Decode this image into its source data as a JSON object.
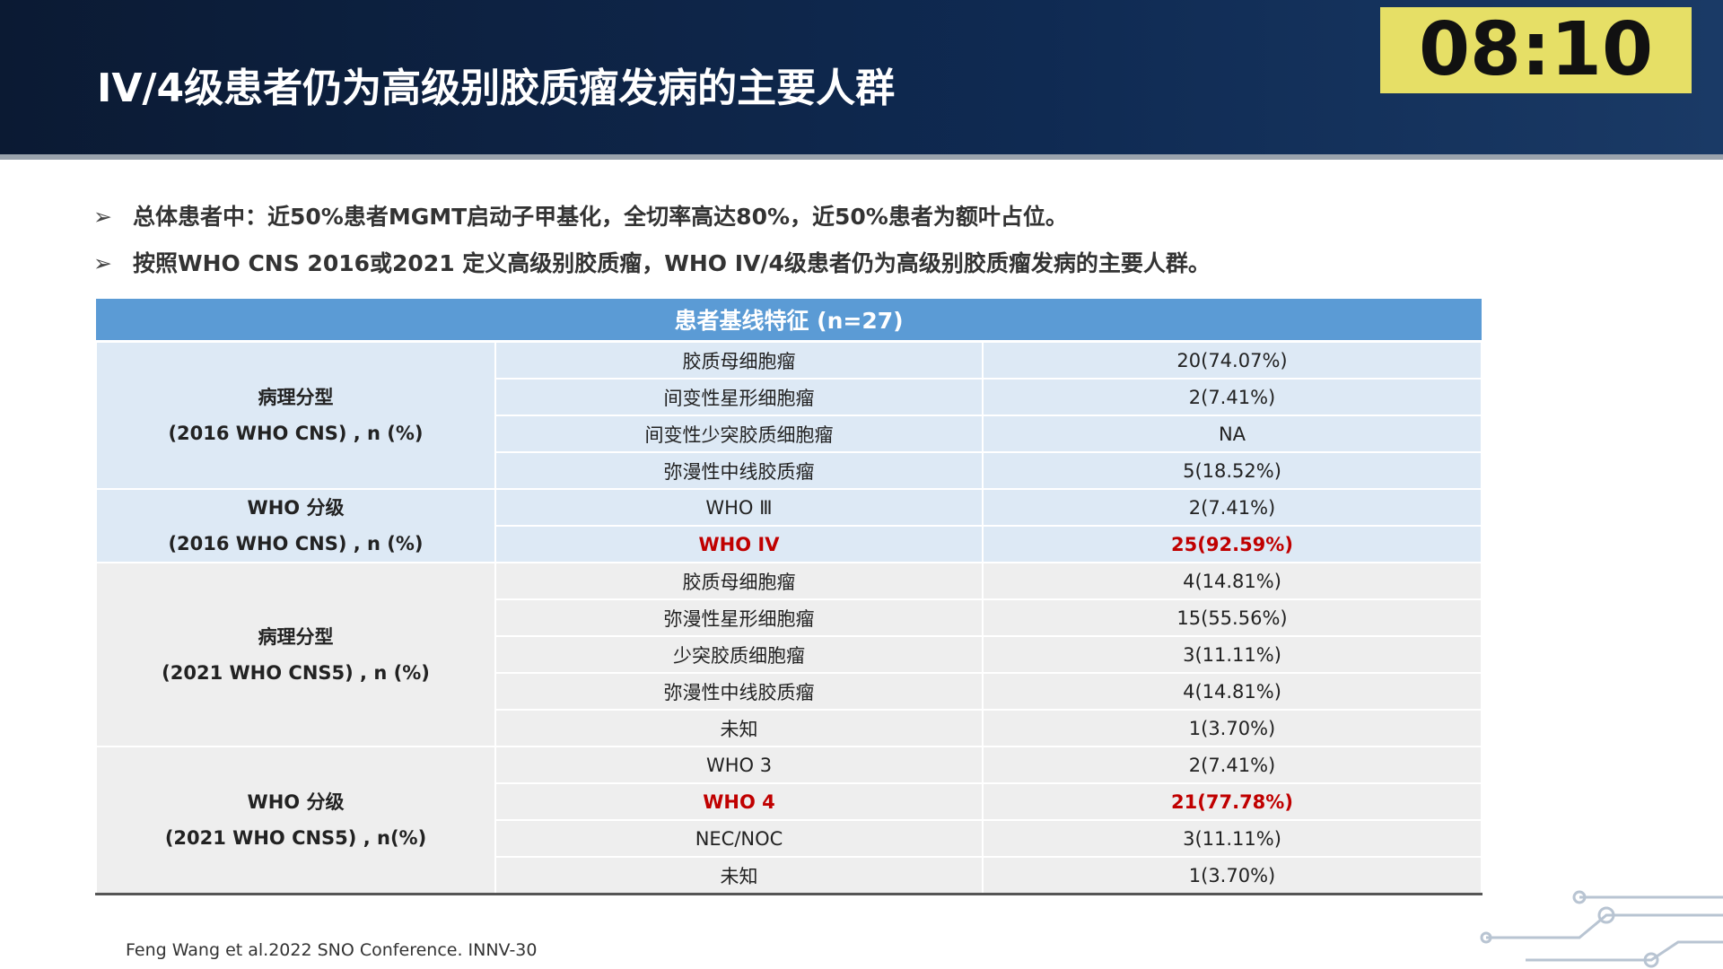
{
  "header": {
    "title": "IV/4级患者仍为高级别胶质瘤发病的主要人群",
    "timer": "08:10"
  },
  "bullets": [
    "总体患者中：近50%患者MGMT启动子甲基化，全切率高达80%，近50%患者为额叶占位。",
    "按照WHO CNS 2016或2021 定义高级别胶质瘤，WHO IV/4级患者仍为高级别胶质瘤发病的主要人群。"
  ],
  "table": {
    "title": "患者基线特征 (n=27)",
    "groups": [
      {
        "label": [
          "病理分型",
          "(2016 WHO CNS) , n (%)"
        ],
        "background": "#dde9f5",
        "rows": [
          [
            "胶质母细胞瘤",
            "20(74.07%)"
          ],
          [
            "间变性星形细胞瘤",
            "2(7.41%)"
          ],
          [
            "间变性少突胶质细胞瘤",
            "NA"
          ],
          [
            "弥漫性中线胶质瘤",
            "5(18.52%)"
          ]
        ]
      },
      {
        "label": [
          "WHO 分级",
          "(2016 WHO CNS) , n (%)"
        ],
        "background": "#dde9f5",
        "highlight_row": 1,
        "rows": [
          [
            "WHO Ⅲ",
            "2(7.41%)"
          ],
          [
            "WHO IV",
            "25(92.59%)"
          ]
        ]
      },
      {
        "label": [
          "病理分型",
          "(2021 WHO CNS5) , n (%)"
        ],
        "background": "#eeeeee",
        "rows": [
          [
            "胶质母细胞瘤",
            "4(14.81%)"
          ],
          [
            "弥漫性星形细胞瘤",
            "15(55.56%)"
          ],
          [
            "少突胶质细胞瘤",
            "3(11.11%)"
          ],
          [
            "弥漫性中线胶质瘤",
            "4(14.81%)"
          ],
          [
            "未知",
            "1(3.70%)"
          ]
        ]
      },
      {
        "label": [
          "WHO 分级",
          "(2021 WHO CNS5) , n(%)"
        ],
        "background": "#eeeeee",
        "highlight_row": 1,
        "rows": [
          [
            "WHO 3",
            "2(7.41%)"
          ],
          [
            "WHO 4",
            "21(77.78%)"
          ],
          [
            "NEC/NOC",
            "3(11.11%)"
          ],
          [
            "未知",
            "1(3.70%)"
          ]
        ]
      }
    ]
  },
  "footnote": "Feng Wang et al.2022 SNO Conference. INNV-30"
}
